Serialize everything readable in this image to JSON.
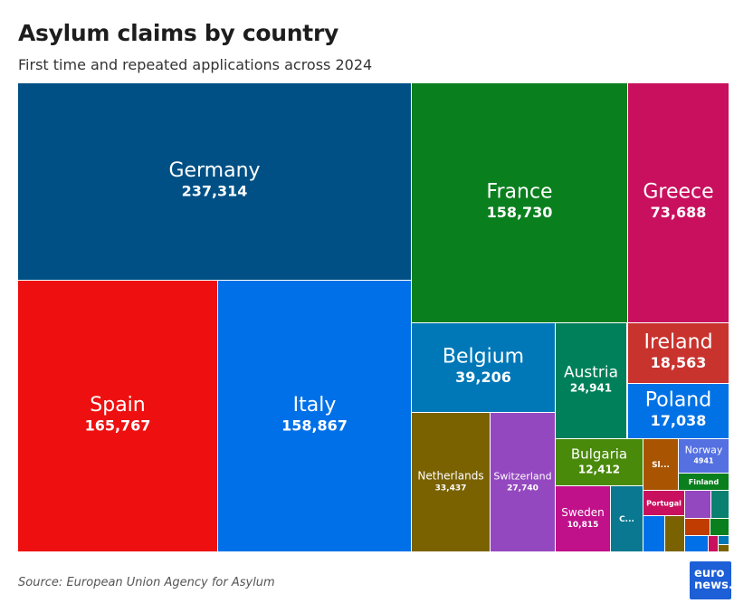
{
  "header": {
    "title": "Asylum claims by country",
    "subtitle": "First time and repeated applications across 2024"
  },
  "footer": {
    "source": "Source: European Union Agency for Asylum",
    "logo_line1": "euro",
    "logo_line2": "news."
  },
  "chart_data": {
    "type": "treemap",
    "title": "Asylum claims by country",
    "subtitle": "First time and repeated applications across 2024",
    "items": [
      {
        "name": "Germany",
        "label": "Germany",
        "value": 237314,
        "value_label": "237,314",
        "color": "#005085"
      },
      {
        "name": "Spain",
        "label": "Spain",
        "value": 165767,
        "value_label": "165,767",
        "color": "#ee1010"
      },
      {
        "name": "Italy",
        "label": "Italy",
        "value": 158867,
        "value_label": "158,867",
        "color": "#0070e8"
      },
      {
        "name": "France",
        "label": "France",
        "value": 158730,
        "value_label": "158,730",
        "color": "#0a7f1e"
      },
      {
        "name": "Greece",
        "label": "Greece",
        "value": 73688,
        "value_label": "73,688",
        "color": "#c8105e"
      },
      {
        "name": "Belgium",
        "label": "Belgium",
        "value": 39206,
        "value_label": "39,206",
        "color": "#0078b8"
      },
      {
        "name": "Austria",
        "label": "Austria",
        "value": 24941,
        "value_label": "24,941",
        "color": "#00805a"
      },
      {
        "name": "Ireland",
        "label": "Ireland",
        "value": 18563,
        "value_label": "18,563",
        "color": "#c8332e"
      },
      {
        "name": "Poland",
        "label": "Poland",
        "value": 17038,
        "value_label": "17,038",
        "color": "#0072e6"
      },
      {
        "name": "Netherlands",
        "label": "Netherlands",
        "value": 33437,
        "value_label": "33,437",
        "color": "#7a6200"
      },
      {
        "name": "Switzerland",
        "label": "Switzerland",
        "value": 27740,
        "value_label": "27,740",
        "color": "#9448c0"
      },
      {
        "name": "Bulgaria",
        "label": "Bulgaria",
        "value": 12412,
        "value_label": "12,412",
        "color": "#4a8a0a"
      },
      {
        "name": "Slovenia",
        "label": "Sl...",
        "value": null,
        "value_label": "",
        "color": "#a85400"
      },
      {
        "name": "Norway",
        "label": "Norway",
        "value": 4941,
        "value_label": "4941",
        "color": "#5570e0"
      },
      {
        "name": "Finland",
        "label": "Finland",
        "value": null,
        "value_label": "",
        "color": "#0a7f1e"
      },
      {
        "name": "Sweden",
        "label": "Sweden",
        "value": 10815,
        "value_label": "10,815",
        "color": "#c0108a"
      },
      {
        "name": "Cyprus",
        "label": "C...",
        "value": null,
        "value_label": "",
        "color": "#0a7890"
      },
      {
        "name": "Portugal",
        "label": "Portugal",
        "value": null,
        "value_label": "",
        "color": "#c8105e"
      },
      {
        "name": "other-1",
        "label": "",
        "value": null,
        "value_label": "",
        "color": "#0070e8"
      },
      {
        "name": "other-2",
        "label": "",
        "value": null,
        "value_label": "",
        "color": "#7a6200"
      },
      {
        "name": "other-3",
        "label": "",
        "value": null,
        "value_label": "",
        "color": "#9448c0"
      },
      {
        "name": "other-4",
        "label": "",
        "value": null,
        "value_label": "",
        "color": "#0a8070"
      },
      {
        "name": "other-5",
        "label": "",
        "value": null,
        "value_label": "",
        "color": "#c03c00"
      },
      {
        "name": "other-6",
        "label": "",
        "value": null,
        "value_label": "",
        "color": "#0a7f1e"
      },
      {
        "name": "other-7",
        "label": "",
        "value": null,
        "value_label": "",
        "color": "#0070e8"
      },
      {
        "name": "other-8",
        "label": "",
        "value": null,
        "value_label": "",
        "color": "#c8105e"
      },
      {
        "name": "other-9",
        "label": "",
        "value": null,
        "value_label": "",
        "color": "#0078b8"
      },
      {
        "name": "other-10",
        "label": "",
        "value": null,
        "value_label": "",
        "color": "#7a6200"
      }
    ]
  }
}
